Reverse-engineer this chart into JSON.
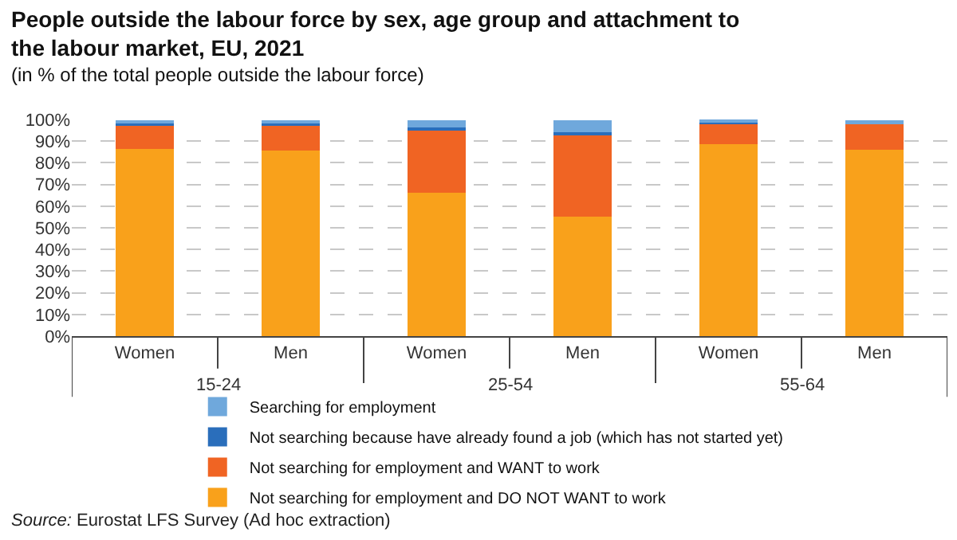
{
  "chart_data": {
    "type": "bar",
    "stacked": true,
    "title": "People outside the labour force by sex, age group and attachment to the labour market, EU, 2021",
    "subtitle": "(in % of the total people outside the labour force)",
    "categories": [
      "Women",
      "Men",
      "Women",
      "Men",
      "Women",
      "Men"
    ],
    "series": [
      {
        "name": "Not searching for employment and DO NOT WANT to work",
        "color": "#f9a11b",
        "values": [
          86.5,
          85.5,
          66,
          55,
          88.5,
          86
        ]
      },
      {
        "name": "Not searching for employment and WANT to work",
        "color": "#f06423",
        "values": [
          11,
          12,
          29.5,
          38,
          10,
          12
        ]
      },
      {
        "name": "Not searching because have already found a job (which has not started yet)",
        "color": "#2a6ebb",
        "values": [
          0.5,
          0.5,
          1,
          1,
          0.3,
          0.5
        ]
      },
      {
        "name": "Searching for employment",
        "color": "#6fa8dc",
        "values": [
          1.5,
          1.5,
          3,
          5.5,
          0.5,
          1
        ]
      }
    ],
    "ylim": [
      0,
      100
    ],
    "yticks": [
      {
        "value": 0,
        "label": "0%"
      },
      {
        "value": 10,
        "label": "10%"
      },
      {
        "value": 20,
        "label": "20%"
      },
      {
        "value": 30,
        "label": "30%"
      },
      {
        "value": 40,
        "label": "40%"
      },
      {
        "value": 50,
        "label": "50%"
      },
      {
        "value": 60,
        "label": "60%"
      },
      {
        "value": 70,
        "label": "70%"
      },
      {
        "value": 80,
        "label": "80%"
      },
      {
        "value": 90,
        "label": "90%"
      },
      {
        "value": 100,
        "label": "100%"
      }
    ],
    "grid": "y",
    "legend": "bottom",
    "annotations": [
      "15-24",
      "25-54",
      "55-64",
      "Source: Eurostat LFS Survey (Ad hoc extraction)"
    ]
  }
}
